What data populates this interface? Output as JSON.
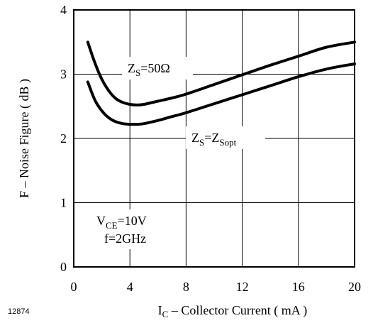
{
  "chart_data": {
    "type": "line",
    "xlabel": {
      "main": "I",
      "sub": "C",
      "rest": " – Collector Current ( mA )"
    },
    "ylabel": "F  –  Noise Figure  ( dB )",
    "xlim": [
      0,
      20
    ],
    "ylim": [
      0,
      4
    ],
    "x_ticks": [
      "0",
      "4",
      "8",
      "12",
      "16",
      "20"
    ],
    "y_ticks": [
      "0",
      "1",
      "2",
      "3",
      "4"
    ],
    "grid": true,
    "series": [
      {
        "name": "ZS=50Ω",
        "x": [
          1,
          1.5,
          2,
          2.5,
          3,
          3.5,
          4,
          4.5,
          5,
          6,
          7,
          8,
          10,
          12,
          14,
          16,
          18,
          20
        ],
        "y": [
          3.5,
          3.18,
          2.92,
          2.74,
          2.62,
          2.56,
          2.53,
          2.52,
          2.53,
          2.58,
          2.63,
          2.69,
          2.84,
          2.99,
          3.14,
          3.28,
          3.42,
          3.5
        ]
      },
      {
        "name": "ZS=ZSopt",
        "x": [
          1,
          1.5,
          2,
          2.5,
          3,
          3.5,
          4,
          4.5,
          5,
          6,
          7,
          8,
          10,
          12,
          14,
          16,
          18,
          20
        ],
        "y": [
          2.88,
          2.6,
          2.43,
          2.32,
          2.26,
          2.23,
          2.22,
          2.22,
          2.23,
          2.28,
          2.34,
          2.4,
          2.54,
          2.68,
          2.82,
          2.96,
          3.08,
          3.16
        ]
      }
    ],
    "annotations": {
      "zs50": {
        "main": "Z",
        "sub": "S",
        "rest": "=50Ω"
      },
      "zsopt": {
        "main": "Z",
        "sub": "S",
        "mid": "=Z",
        "sub2": "Sopt"
      },
      "vce": {
        "main": "V",
        "sub": "CE",
        "rest": "=10V"
      },
      "freq": "f=2GHz"
    },
    "figure_number": "12874",
    "colors": {
      "line": "#000000",
      "grid": "#000000",
      "background": "#ffffff"
    }
  }
}
